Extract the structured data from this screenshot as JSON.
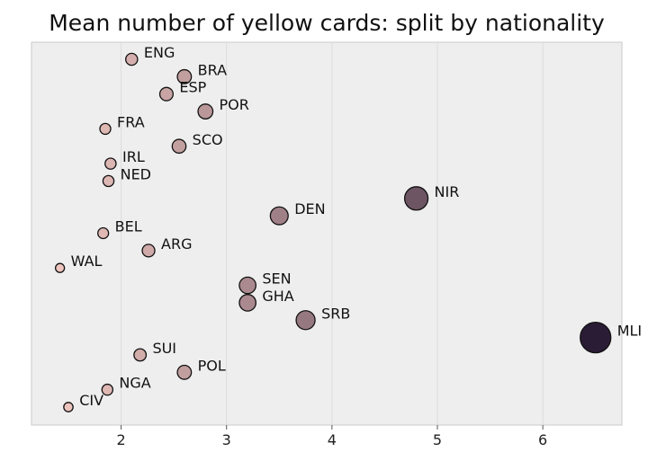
{
  "chart_data": {
    "type": "scatter",
    "title": "Mean number of yellow cards: split by nationality",
    "xlabel": "",
    "ylabel": "",
    "xlim": [
      1.15,
      6.75
    ],
    "xticks": [
      2,
      3,
      4,
      5,
      6
    ],
    "grid": true,
    "legend": "none",
    "plot_background": "#eeeeee",
    "color_low": "#efc6bf",
    "color_high": "#2b1c35",
    "points": [
      {
        "label": "ENG",
        "x": 2.1,
        "rank": 1
      },
      {
        "label": "BRA",
        "x": 2.6,
        "rank": 2
      },
      {
        "label": "ESP",
        "x": 2.43,
        "rank": 3
      },
      {
        "label": "POR",
        "x": 2.8,
        "rank": 4
      },
      {
        "label": "FRA",
        "x": 1.85,
        "rank": 5
      },
      {
        "label": "SCO",
        "x": 2.55,
        "rank": 6
      },
      {
        "label": "IRL",
        "x": 1.9,
        "rank": 7
      },
      {
        "label": "NED",
        "x": 1.88,
        "rank": 8
      },
      {
        "label": "NIR",
        "x": 4.8,
        "rank": 9
      },
      {
        "label": "DEN",
        "x": 3.5,
        "rank": 10
      },
      {
        "label": "BEL",
        "x": 1.83,
        "rank": 11
      },
      {
        "label": "ARG",
        "x": 2.26,
        "rank": 12
      },
      {
        "label": "WAL",
        "x": 1.42,
        "rank": 13
      },
      {
        "label": "SEN",
        "x": 3.2,
        "rank": 14
      },
      {
        "label": "GHA",
        "x": 3.2,
        "rank": 15
      },
      {
        "label": "SRB",
        "x": 3.75,
        "rank": 16
      },
      {
        "label": "MLI",
        "x": 6.5,
        "rank": 17
      },
      {
        "label": "SUI",
        "x": 2.18,
        "rank": 18
      },
      {
        "label": "POL",
        "x": 2.6,
        "rank": 19
      },
      {
        "label": "NGA",
        "x": 1.87,
        "rank": 20
      },
      {
        "label": "CIV",
        "x": 1.5,
        "rank": 21
      }
    ]
  }
}
